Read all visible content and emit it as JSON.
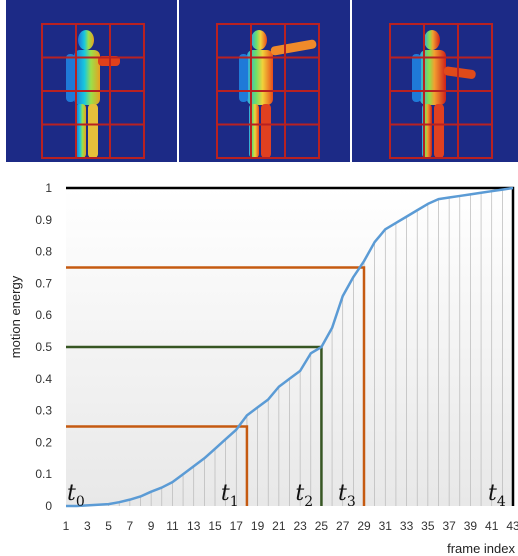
{
  "frames": [
    {
      "pose": "arm-extended-right-warm"
    },
    {
      "pose": "arm-extended-right-torso-warm"
    },
    {
      "pose": "arm-bent-right-torso-red"
    }
  ],
  "colors": {
    "frame_bg": "#1c2a86",
    "grid_red": "#b82121",
    "curve": "#5b9bd5",
    "orange": "#c55a11",
    "green": "#375623",
    "black": "#000000"
  },
  "chart_data": {
    "type": "line",
    "title": "",
    "xlabel": "frame index",
    "ylabel": "motion energy",
    "xlim": [
      1,
      43
    ],
    "ylim": [
      0,
      1
    ],
    "x_ticks": [
      1,
      3,
      5,
      7,
      9,
      11,
      13,
      15,
      17,
      19,
      21,
      23,
      25,
      27,
      29,
      31,
      33,
      35,
      37,
      39,
      41,
      43
    ],
    "y_ticks": [
      "0",
      "0.1",
      "0.2",
      "0.3",
      "0.4",
      "0.5",
      "0.6",
      "0.7",
      "0.8",
      "0.9",
      "1"
    ],
    "grid": "vertical lines at each frame",
    "series": [
      {
        "x": [
          1,
          2,
          3,
          4,
          5,
          6,
          7,
          8,
          9,
          10,
          11,
          12,
          13,
          14,
          15,
          16,
          17,
          18,
          19,
          20,
          21,
          22,
          23,
          24,
          25,
          26,
          27,
          28,
          29,
          30,
          31,
          32,
          33,
          34,
          35,
          36,
          37,
          38,
          39,
          40,
          41,
          42,
          43
        ],
        "values": [
          0,
          0,
          0.002,
          0.004,
          0.006,
          0.012,
          0.02,
          0.03,
          0.045,
          0.058,
          0.075,
          0.1,
          0.125,
          0.15,
          0.18,
          0.21,
          0.24,
          0.285,
          0.31,
          0.335,
          0.375,
          0.4,
          0.425,
          0.48,
          0.5,
          0.56,
          0.66,
          0.72,
          0.77,
          0.83,
          0.87,
          0.89,
          0.91,
          0.93,
          0.95,
          0.965,
          0.97,
          0.975,
          0.98,
          0.985,
          0.99,
          0.995,
          1.0
        ]
      }
    ],
    "markers": [
      {
        "label": "t",
        "sub": "0",
        "x": 1,
        "y": 0
      },
      {
        "label": "t",
        "sub": "1",
        "x": 18,
        "y": 0.25,
        "color": "orange"
      },
      {
        "label": "t",
        "sub": "2",
        "x": 25,
        "y": 0.5,
        "color": "green"
      },
      {
        "label": "t",
        "sub": "3",
        "x": 29,
        "y": 0.75,
        "color": "orange"
      },
      {
        "label": "t",
        "sub": "4",
        "x": 43,
        "y": 1,
        "color": "black"
      }
    ]
  }
}
